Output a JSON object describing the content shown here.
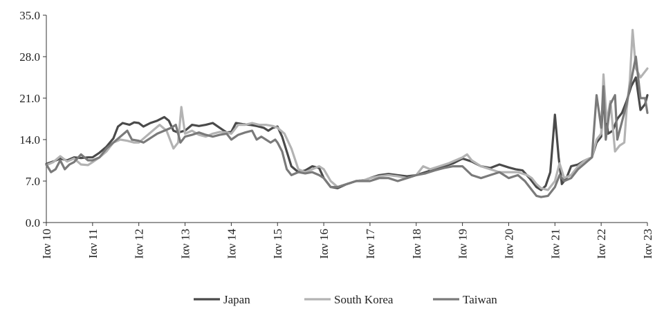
{
  "chart_data": {
    "type": "line",
    "title": "",
    "xlabel": "",
    "ylabel": "",
    "ylim": [
      0,
      35
    ],
    "y_ticks": [
      0,
      7,
      14,
      21,
      28,
      35
    ],
    "y_tick_labels": [
      "0.0",
      "7.0",
      "14.0",
      "21.0",
      "28.0",
      "35.0"
    ],
    "x_ticks": [
      2010,
      2011,
      2012,
      2013,
      2014,
      2015,
      2016,
      2017,
      2018,
      2019,
      2020,
      2021,
      2022,
      2023
    ],
    "x_tick_labels": [
      "Ιαν 10",
      "Ιαν 11",
      "Ιαν 12",
      "Ιαν 13",
      "Ιαν 14",
      "Ιαν 15",
      "Ιαν 16",
      "Ιαν 17",
      "Ιαν 18",
      "Ιαν 19",
      "Ιαν 20",
      "Ιαν 21",
      "Ιαν 22",
      "Ιαν 23"
    ],
    "xlim": [
      2010,
      2023
    ],
    "grid": false,
    "legend_position": "bottom",
    "series": [
      {
        "name": "Japan",
        "color": "#4a4a4a",
        "points": [
          [
            2010.0,
            9.9
          ],
          [
            2010.15,
            10.3
          ],
          [
            2010.3,
            10.8
          ],
          [
            2010.45,
            10.5
          ],
          [
            2010.6,
            11.0
          ],
          [
            2010.75,
            10.9
          ],
          [
            2010.9,
            11.0
          ],
          [
            2011.0,
            11.0
          ],
          [
            2011.15,
            11.8
          ],
          [
            2011.3,
            12.8
          ],
          [
            2011.45,
            14.2
          ],
          [
            2011.55,
            16.2
          ],
          [
            2011.65,
            16.8
          ],
          [
            2011.8,
            16.5
          ],
          [
            2011.9,
            16.9
          ],
          [
            2012.0,
            16.8
          ],
          [
            2012.1,
            16.2
          ],
          [
            2012.25,
            16.8
          ],
          [
            2012.4,
            17.2
          ],
          [
            2012.55,
            17.8
          ],
          [
            2012.65,
            17.2
          ],
          [
            2012.75,
            15.5
          ],
          [
            2012.85,
            15.2
          ],
          [
            2013.0,
            15.5
          ],
          [
            2013.15,
            16.5
          ],
          [
            2013.3,
            16.3
          ],
          [
            2013.45,
            16.5
          ],
          [
            2013.6,
            16.8
          ],
          [
            2013.75,
            16.0
          ],
          [
            2013.9,
            15.2
          ],
          [
            2014.0,
            15.3
          ],
          [
            2014.1,
            16.8
          ],
          [
            2014.25,
            16.6
          ],
          [
            2014.4,
            16.5
          ],
          [
            2014.55,
            16.3
          ],
          [
            2014.7,
            16.0
          ],
          [
            2014.8,
            15.5
          ],
          [
            2014.9,
            16.0
          ],
          [
            2015.0,
            16.2
          ],
          [
            2015.1,
            14.5
          ],
          [
            2015.2,
            12.0
          ],
          [
            2015.3,
            9.5
          ],
          [
            2015.45,
            8.5
          ],
          [
            2015.6,
            8.8
          ],
          [
            2015.75,
            9.5
          ],
          [
            2015.9,
            9.2
          ],
          [
            2016.0,
            7.5
          ],
          [
            2016.15,
            6.0
          ],
          [
            2016.3,
            5.8
          ],
          [
            2016.5,
            6.5
          ],
          [
            2016.7,
            7.0
          ],
          [
            2016.9,
            7.2
          ],
          [
            2017.0,
            7.5
          ],
          [
            2017.2,
            8.0
          ],
          [
            2017.4,
            8.2
          ],
          [
            2017.6,
            8.0
          ],
          [
            2017.8,
            7.8
          ],
          [
            2018.0,
            8.0
          ],
          [
            2018.2,
            8.5
          ],
          [
            2018.4,
            9.0
          ],
          [
            2018.6,
            9.5
          ],
          [
            2018.8,
            10.0
          ],
          [
            2019.0,
            10.8
          ],
          [
            2019.2,
            10.3
          ],
          [
            2019.4,
            9.5
          ],
          [
            2019.6,
            9.2
          ],
          [
            2019.8,
            9.8
          ],
          [
            2020.0,
            9.3
          ],
          [
            2020.15,
            9.0
          ],
          [
            2020.3,
            8.8
          ],
          [
            2020.45,
            7.5
          ],
          [
            2020.6,
            6.0
          ],
          [
            2020.7,
            5.5
          ],
          [
            2020.8,
            6.2
          ],
          [
            2020.9,
            8.5
          ],
          [
            2021.0,
            18.2
          ],
          [
            2021.08,
            11.0
          ],
          [
            2021.15,
            6.5
          ],
          [
            2021.25,
            7.5
          ],
          [
            2021.35,
            9.5
          ],
          [
            2021.5,
            9.8
          ],
          [
            2021.65,
            10.5
          ],
          [
            2021.8,
            11.0
          ],
          [
            2021.9,
            13.5
          ],
          [
            2022.0,
            14.5
          ],
          [
            2022.05,
            22.0
          ],
          [
            2022.15,
            15.0
          ],
          [
            2022.25,
            15.5
          ],
          [
            2022.35,
            17.5
          ],
          [
            2022.45,
            18.5
          ],
          [
            2022.55,
            20.5
          ],
          [
            2022.65,
            23.0
          ],
          [
            2022.75,
            24.5
          ],
          [
            2022.85,
            19.0
          ],
          [
            2022.95,
            20.0
          ],
          [
            2023.0,
            21.5
          ]
        ]
      },
      {
        "name": "South Korea",
        "color": "#b3b3b3",
        "points": [
          [
            2010.0,
            9.7
          ],
          [
            2010.15,
            10.2
          ],
          [
            2010.3,
            11.2
          ],
          [
            2010.45,
            10.3
          ],
          [
            2010.6,
            10.8
          ],
          [
            2010.75,
            9.8
          ],
          [
            2010.9,
            9.7
          ],
          [
            2011.0,
            10.2
          ],
          [
            2011.15,
            11.0
          ],
          [
            2011.3,
            12.0
          ],
          [
            2011.45,
            13.5
          ],
          [
            2011.6,
            14.0
          ],
          [
            2011.75,
            13.8
          ],
          [
            2011.9,
            13.5
          ],
          [
            2012.0,
            13.5
          ],
          [
            2012.15,
            14.5
          ],
          [
            2012.3,
            15.5
          ],
          [
            2012.45,
            16.5
          ],
          [
            2012.6,
            15.5
          ],
          [
            2012.75,
            12.5
          ],
          [
            2012.85,
            13.5
          ],
          [
            2012.92,
            19.5
          ],
          [
            2013.0,
            15.0
          ],
          [
            2013.15,
            15.5
          ],
          [
            2013.3,
            14.8
          ],
          [
            2013.45,
            14.5
          ],
          [
            2013.6,
            15.0
          ],
          [
            2013.75,
            15.3
          ],
          [
            2013.9,
            15.2
          ],
          [
            2014.0,
            15.0
          ],
          [
            2014.15,
            16.5
          ],
          [
            2014.3,
            16.5
          ],
          [
            2014.45,
            16.8
          ],
          [
            2014.6,
            16.5
          ],
          [
            2014.75,
            16.5
          ],
          [
            2014.9,
            16.3
          ],
          [
            2015.0,
            16.0
          ],
          [
            2015.15,
            15.0
          ],
          [
            2015.3,
            12.5
          ],
          [
            2015.45,
            9.0
          ],
          [
            2015.6,
            8.5
          ],
          [
            2015.75,
            9.0
          ],
          [
            2015.9,
            9.5
          ],
          [
            2016.0,
            9.0
          ],
          [
            2016.15,
            7.0
          ],
          [
            2016.3,
            6.0
          ],
          [
            2016.5,
            6.5
          ],
          [
            2016.7,
            7.0
          ],
          [
            2016.9,
            7.2
          ],
          [
            2017.0,
            7.5
          ],
          [
            2017.2,
            7.8
          ],
          [
            2017.4,
            8.0
          ],
          [
            2017.6,
            7.8
          ],
          [
            2017.8,
            7.5
          ],
          [
            2018.0,
            8.0
          ],
          [
            2018.15,
            9.5
          ],
          [
            2018.3,
            9.0
          ],
          [
            2018.5,
            9.5
          ],
          [
            2018.7,
            10.0
          ],
          [
            2018.85,
            10.5
          ],
          [
            2019.0,
            11.0
          ],
          [
            2019.1,
            11.5
          ],
          [
            2019.2,
            10.5
          ],
          [
            2019.4,
            9.5
          ],
          [
            2019.6,
            9.0
          ],
          [
            2019.8,
            8.5
          ],
          [
            2020.0,
            8.5
          ],
          [
            2020.2,
            8.5
          ],
          [
            2020.4,
            8.0
          ],
          [
            2020.5,
            7.5
          ],
          [
            2020.6,
            6.5
          ],
          [
            2020.7,
            5.8
          ],
          [
            2020.85,
            5.5
          ],
          [
            2021.0,
            7.0
          ],
          [
            2021.1,
            10.0
          ],
          [
            2021.2,
            7.5
          ],
          [
            2021.35,
            8.0
          ],
          [
            2021.5,
            9.5
          ],
          [
            2021.65,
            10.5
          ],
          [
            2021.8,
            11.0
          ],
          [
            2021.9,
            14.0
          ],
          [
            2022.0,
            15.0
          ],
          [
            2022.05,
            25.0
          ],
          [
            2022.12,
            17.0
          ],
          [
            2022.2,
            20.5
          ],
          [
            2022.3,
            12.0
          ],
          [
            2022.4,
            13.0
          ],
          [
            2022.5,
            13.5
          ],
          [
            2022.55,
            19.0
          ],
          [
            2022.62,
            24.0
          ],
          [
            2022.68,
            32.5
          ],
          [
            2022.75,
            26.0
          ],
          [
            2022.85,
            24.5
          ],
          [
            2022.95,
            25.5
          ],
          [
            2023.0,
            26.0
          ]
        ]
      },
      {
        "name": "Taiwan",
        "color": "#7a7a7a",
        "points": [
          [
            2010.0,
            9.8
          ],
          [
            2010.1,
            8.5
          ],
          [
            2010.2,
            9.0
          ],
          [
            2010.3,
            10.5
          ],
          [
            2010.4,
            9.0
          ],
          [
            2010.5,
            9.8
          ],
          [
            2010.6,
            10.2
          ],
          [
            2010.75,
            11.5
          ],
          [
            2010.9,
            10.5
          ],
          [
            2011.0,
            10.5
          ],
          [
            2011.15,
            11.0
          ],
          [
            2011.3,
            12.5
          ],
          [
            2011.45,
            13.5
          ],
          [
            2011.6,
            14.5
          ],
          [
            2011.75,
            15.5
          ],
          [
            2011.85,
            14.0
          ],
          [
            2012.0,
            13.8
          ],
          [
            2012.1,
            13.5
          ],
          [
            2012.2,
            14.0
          ],
          [
            2012.3,
            14.5
          ],
          [
            2012.4,
            15.0
          ],
          [
            2012.55,
            15.5
          ],
          [
            2012.7,
            16.0
          ],
          [
            2012.8,
            16.5
          ],
          [
            2012.9,
            13.5
          ],
          [
            2013.0,
            14.5
          ],
          [
            2013.15,
            14.8
          ],
          [
            2013.3,
            15.2
          ],
          [
            2013.45,
            14.8
          ],
          [
            2013.6,
            14.5
          ],
          [
            2013.75,
            14.8
          ],
          [
            2013.9,
            15.0
          ],
          [
            2014.0,
            14.0
          ],
          [
            2014.15,
            14.8
          ],
          [
            2014.3,
            15.2
          ],
          [
            2014.45,
            15.5
          ],
          [
            2014.55,
            14.0
          ],
          [
            2014.65,
            14.5
          ],
          [
            2014.75,
            14.0
          ],
          [
            2014.85,
            13.5
          ],
          [
            2014.95,
            14.0
          ],
          [
            2015.0,
            13.5
          ],
          [
            2015.1,
            12.0
          ],
          [
            2015.2,
            9.0
          ],
          [
            2015.3,
            8.0
          ],
          [
            2015.45,
            8.5
          ],
          [
            2015.6,
            8.3
          ],
          [
            2015.75,
            8.5
          ],
          [
            2015.9,
            8.0
          ],
          [
            2016.0,
            7.5
          ],
          [
            2016.15,
            6.0
          ],
          [
            2016.3,
            6.0
          ],
          [
            2016.5,
            6.5
          ],
          [
            2016.7,
            7.0
          ],
          [
            2016.9,
            7.0
          ],
          [
            2017.0,
            7.0
          ],
          [
            2017.2,
            7.5
          ],
          [
            2017.4,
            7.5
          ],
          [
            2017.6,
            7.0
          ],
          [
            2017.8,
            7.5
          ],
          [
            2018.0,
            8.0
          ],
          [
            2018.2,
            8.3
          ],
          [
            2018.4,
            8.8
          ],
          [
            2018.6,
            9.2
          ],
          [
            2018.8,
            9.5
          ],
          [
            2019.0,
            9.5
          ],
          [
            2019.2,
            8.0
          ],
          [
            2019.4,
            7.5
          ],
          [
            2019.6,
            8.0
          ],
          [
            2019.8,
            8.5
          ],
          [
            2020.0,
            7.5
          ],
          [
            2020.2,
            8.0
          ],
          [
            2020.35,
            7.0
          ],
          [
            2020.5,
            5.5
          ],
          [
            2020.6,
            4.5
          ],
          [
            2020.7,
            4.3
          ],
          [
            2020.85,
            4.5
          ],
          [
            2021.0,
            6.0
          ],
          [
            2021.1,
            8.0
          ],
          [
            2021.2,
            7.0
          ],
          [
            2021.35,
            7.5
          ],
          [
            2021.5,
            9.0
          ],
          [
            2021.65,
            10.0
          ],
          [
            2021.8,
            11.0
          ],
          [
            2021.9,
            21.5
          ],
          [
            2022.0,
            16.0
          ],
          [
            2022.05,
            23.0
          ],
          [
            2022.1,
            14.0
          ],
          [
            2022.2,
            20.0
          ],
          [
            2022.3,
            21.5
          ],
          [
            2022.35,
            14.0
          ],
          [
            2022.45,
            17.0
          ],
          [
            2022.55,
            20.0
          ],
          [
            2022.65,
            24.0
          ],
          [
            2022.75,
            28.0
          ],
          [
            2022.85,
            21.0
          ],
          [
            2022.95,
            21.0
          ],
          [
            2023.0,
            18.5
          ]
        ]
      }
    ]
  }
}
